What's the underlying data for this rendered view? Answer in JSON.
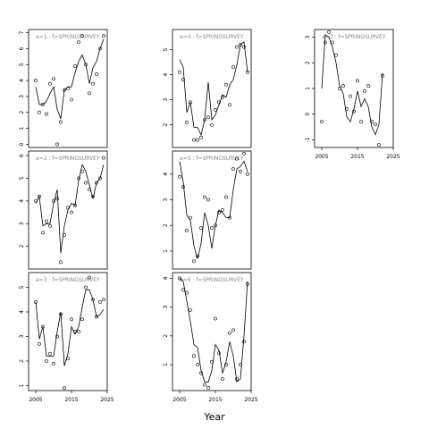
{
  "chart_data": {
    "type": "line",
    "xlabel": "Year",
    "x_ticks": [
      2005,
      2015,
      2025
    ],
    "x_tick_labels": [
      "2005",
      "2015",
      "2025"
    ],
    "xlim": [
      2003,
      2025
    ],
    "panels": [
      {
        "id": "a1",
        "strip_label": "a=1 : f=SPRINGSURVEY",
        "ylim": [
          -0.2,
          7.2
        ],
        "y_ticks": [
          0,
          1,
          2,
          3,
          4,
          5,
          6,
          7
        ],
        "y_tick_labels": [
          "0",
          "1",
          "2",
          "3",
          "4",
          "5",
          "6",
          "7"
        ],
        "show_x_axis": false,
        "points": [
          [
            2005,
            4.0
          ],
          [
            2006,
            2.0
          ],
          [
            2007,
            2.5
          ],
          [
            2008,
            1.9
          ],
          [
            2009,
            3.8
          ],
          [
            2010,
            4.1
          ],
          [
            2011,
            0.0
          ],
          [
            2012,
            1.4
          ],
          [
            2013,
            3.4
          ],
          [
            2014,
            3.5
          ],
          [
            2015,
            2.8
          ],
          [
            2016,
            4.9
          ],
          [
            2017,
            6.4
          ],
          [
            2018,
            6.8
          ],
          [
            2019,
            5.0
          ],
          [
            2020,
            3.2
          ],
          [
            2021,
            3.8
          ],
          [
            2022,
            4.4
          ],
          [
            2023,
            6.0
          ],
          [
            2024,
            6.8
          ]
        ],
        "fit": [
          [
            2005,
            3.6
          ],
          [
            2006,
            2.5
          ],
          [
            2007,
            2.5
          ],
          [
            2008,
            2.7
          ],
          [
            2009,
            3.2
          ],
          [
            2010,
            3.6
          ],
          [
            2011,
            2.2
          ],
          [
            2012,
            1.6
          ],
          [
            2013,
            3.4
          ],
          [
            2014,
            3.6
          ],
          [
            2015,
            3.6
          ],
          [
            2016,
            4.5
          ],
          [
            2017,
            5.2
          ],
          [
            2018,
            5.6
          ],
          [
            2019,
            5.0
          ],
          [
            2020,
            3.8
          ],
          [
            2021,
            4.8
          ],
          [
            2022,
            5.2
          ],
          [
            2023,
            6.0
          ],
          [
            2024,
            6.6
          ]
        ]
      },
      {
        "id": "a2",
        "strip_label": "a=2 : f=SPRINGSURVEY",
        "ylim": [
          1.0,
          6.2
        ],
        "y_ticks": [
          2,
          3,
          4,
          5,
          6
        ],
        "y_tick_labels": [
          "2",
          "3",
          "4",
          "5",
          "6"
        ],
        "show_x_axis": false,
        "points": [
          [
            2005,
            4.0
          ],
          [
            2006,
            4.2
          ],
          [
            2007,
            2.6
          ],
          [
            2008,
            3.1
          ],
          [
            2009,
            2.9
          ],
          [
            2010,
            4.0
          ],
          [
            2011,
            4.1
          ],
          [
            2012,
            1.3
          ],
          [
            2013,
            2.5
          ],
          [
            2014,
            3.7
          ],
          [
            2015,
            3.5
          ],
          [
            2016,
            3.8
          ],
          [
            2017,
            5.0
          ],
          [
            2018,
            5.3
          ],
          [
            2019,
            4.8
          ],
          [
            2020,
            4.5
          ],
          [
            2021,
            4.2
          ],
          [
            2022,
            4.8
          ],
          [
            2023,
            5.0
          ],
          [
            2024,
            5.9
          ]
        ],
        "fit": [
          [
            2005,
            3.9
          ],
          [
            2006,
            4.2
          ],
          [
            2007,
            2.9
          ],
          [
            2008,
            3.0
          ],
          [
            2009,
            3.0
          ],
          [
            2010,
            3.9
          ],
          [
            2011,
            4.5
          ],
          [
            2012,
            1.7
          ],
          [
            2013,
            2.9
          ],
          [
            2014,
            3.6
          ],
          [
            2015,
            3.9
          ],
          [
            2016,
            3.8
          ],
          [
            2017,
            4.9
          ],
          [
            2018,
            5.6
          ],
          [
            2019,
            5.3
          ],
          [
            2020,
            4.7
          ],
          [
            2021,
            4.1
          ],
          [
            2022,
            4.8
          ],
          [
            2023,
            5.0
          ],
          [
            2024,
            5.6
          ]
        ]
      },
      {
        "id": "a3",
        "strip_label": "a=3 : f=SPRINGSURVEY",
        "ylim": [
          0.8,
          5.6
        ],
        "y_ticks": [
          1,
          2,
          3,
          4,
          5
        ],
        "y_tick_labels": [
          "1",
          "2",
          "3",
          "4",
          "5"
        ],
        "show_x_axis": true,
        "points": [
          [
            2005,
            4.4
          ],
          [
            2006,
            2.7
          ],
          [
            2007,
            3.4
          ],
          [
            2008,
            2.0
          ],
          [
            2009,
            2.3
          ],
          [
            2010,
            1.9
          ],
          [
            2011,
            3.0
          ],
          [
            2012,
            3.9
          ],
          [
            2013,
            0.9
          ],
          [
            2014,
            2.1
          ],
          [
            2015,
            3.7
          ],
          [
            2016,
            3.2
          ],
          [
            2017,
            3.2
          ],
          [
            2018,
            3.7
          ],
          [
            2019,
            5.0
          ],
          [
            2020,
            5.4
          ],
          [
            2021,
            4.5
          ],
          [
            2022,
            3.8
          ],
          [
            2023,
            4.4
          ],
          [
            2024,
            4.5
          ]
        ],
        "fit": [
          [
            2005,
            4.4
          ],
          [
            2006,
            2.9
          ],
          [
            2007,
            3.4
          ],
          [
            2008,
            2.2
          ],
          [
            2009,
            2.2
          ],
          [
            2010,
            2.2
          ],
          [
            2011,
            3.2
          ],
          [
            2012,
            4.0
          ],
          [
            2013,
            1.8
          ],
          [
            2014,
            2.3
          ],
          [
            2015,
            3.4
          ],
          [
            2016,
            3.1
          ],
          [
            2017,
            3.4
          ],
          [
            2018,
            4.2
          ],
          [
            2019,
            4.9
          ],
          [
            2020,
            4.9
          ],
          [
            2021,
            4.5
          ],
          [
            2022,
            3.8
          ],
          [
            2023,
            3.9
          ],
          [
            2024,
            4.1
          ]
        ]
      },
      {
        "id": "a4",
        "strip_label": "a=4 : f=SPRINGSURVEY",
        "ylim": [
          1.1,
          5.8
        ],
        "y_ticks": [
          2,
          3,
          4,
          5
        ],
        "y_tick_labels": [
          "2",
          "3",
          "4",
          "5"
        ],
        "show_x_axis": false,
        "points": [
          [
            2005,
            4.1
          ],
          [
            2006,
            3.8
          ],
          [
            2007,
            2.1
          ],
          [
            2008,
            2.9
          ],
          [
            2009,
            1.4
          ],
          [
            2010,
            1.4
          ],
          [
            2011,
            1.5
          ],
          [
            2012,
            2.2
          ],
          [
            2013,
            2.3
          ],
          [
            2014,
            2.0
          ],
          [
            2015,
            2.6
          ],
          [
            2016,
            2.9
          ],
          [
            2017,
            3.1
          ],
          [
            2018,
            3.6
          ],
          [
            2019,
            2.8
          ],
          [
            2020,
            4.3
          ],
          [
            2021,
            5.1
          ],
          [
            2022,
            5.2
          ],
          [
            2023,
            5.1
          ],
          [
            2024,
            4.1
          ]
        ],
        "fit": [
          [
            2005,
            4.6
          ],
          [
            2006,
            4.3
          ],
          [
            2007,
            2.5
          ],
          [
            2008,
            2.9
          ],
          [
            2009,
            1.9
          ],
          [
            2010,
            1.9
          ],
          [
            2011,
            1.6
          ],
          [
            2012,
            2.2
          ],
          [
            2013,
            3.7
          ],
          [
            2014,
            2.2
          ],
          [
            2015,
            2.4
          ],
          [
            2016,
            2.8
          ],
          [
            2017,
            3.2
          ],
          [
            2018,
            3.1
          ],
          [
            2019,
            3.6
          ],
          [
            2020,
            3.8
          ],
          [
            2021,
            4.4
          ],
          [
            2022,
            5.2
          ],
          [
            2023,
            5.3
          ],
          [
            2024,
            4.1
          ]
        ]
      },
      {
        "id": "a5",
        "strip_label": "a=5 : f=SPRINGSURVEY",
        "ylim": [
          0.3,
          4.9
        ],
        "y_ticks": [
          1,
          2,
          3,
          4
        ],
        "y_tick_labels": [
          "1",
          "2",
          "3",
          "4"
        ],
        "show_x_axis": false,
        "points": [
          [
            2005,
            3.9
          ],
          [
            2006,
            3.5
          ],
          [
            2007,
            1.8
          ],
          [
            2008,
            2.3
          ],
          [
            2009,
            0.6
          ],
          [
            2010,
            0.8
          ],
          [
            2011,
            1.9
          ],
          [
            2012,
            3.1
          ],
          [
            2013,
            3.0
          ],
          [
            2014,
            1.9
          ],
          [
            2015,
            2.0
          ],
          [
            2016,
            2.5
          ],
          [
            2017,
            2.6
          ],
          [
            2018,
            3.1
          ],
          [
            2019,
            2.3
          ],
          [
            2020,
            4.2
          ],
          [
            2021,
            4.6
          ],
          [
            2022,
            4.1
          ],
          [
            2023,
            4.8
          ],
          [
            2024,
            4.0
          ]
        ],
        "fit": [
          [
            2005,
            4.5
          ],
          [
            2006,
            3.7
          ],
          [
            2007,
            2.4
          ],
          [
            2008,
            2.2
          ],
          [
            2009,
            1.2
          ],
          [
            2010,
            0.7
          ],
          [
            2011,
            1.3
          ],
          [
            2012,
            2.5
          ],
          [
            2013,
            2.0
          ],
          [
            2014,
            1.1
          ],
          [
            2015,
            2.0
          ],
          [
            2016,
            2.6
          ],
          [
            2017,
            2.5
          ],
          [
            2018,
            2.3
          ],
          [
            2019,
            2.3
          ],
          [
            2020,
            3.4
          ],
          [
            2021,
            4.2
          ],
          [
            2022,
            4.3
          ],
          [
            2023,
            4.5
          ],
          [
            2024,
            4.1
          ]
        ]
      },
      {
        "id": "a6",
        "strip_label": "a=6 : f=SPRINGSURVEY",
        "ylim": [
          0.1,
          4.2
        ],
        "y_ticks": [
          1,
          2,
          3,
          4
        ],
        "y_tick_labels": [
          "1",
          "2",
          "3",
          "4"
        ],
        "show_x_axis": true,
        "points": [
          [
            2005,
            4.0
          ],
          [
            2006,
            3.6
          ],
          [
            2007,
            3.5
          ],
          [
            2008,
            2.9
          ],
          [
            2009,
            1.3
          ],
          [
            2010,
            1.0
          ],
          [
            2011,
            0.7
          ],
          [
            2012,
            0.3
          ],
          [
            2013,
            0.2
          ],
          [
            2014,
            1.1
          ],
          [
            2015,
            2.6
          ],
          [
            2016,
            1.4
          ],
          [
            2017,
            0.5
          ],
          [
            2018,
            1.0
          ],
          [
            2019,
            2.1
          ],
          [
            2020,
            2.2
          ],
          [
            2021,
            0.5
          ],
          [
            2022,
            1.0
          ],
          [
            2023,
            1.8
          ],
          [
            2024,
            3.8
          ]
        ],
        "fit": [
          [
            2005,
            4.0
          ],
          [
            2006,
            3.9
          ],
          [
            2007,
            3.2
          ],
          [
            2008,
            2.5
          ],
          [
            2009,
            1.7
          ],
          [
            2010,
            1.6
          ],
          [
            2011,
            0.8
          ],
          [
            2012,
            0.4
          ],
          [
            2013,
            0.4
          ],
          [
            2014,
            0.8
          ],
          [
            2015,
            1.7
          ],
          [
            2016,
            1.5
          ],
          [
            2017,
            0.7
          ],
          [
            2018,
            1.1
          ],
          [
            2019,
            1.8
          ],
          [
            2020,
            1.3
          ],
          [
            2021,
            0.4
          ],
          [
            2022,
            0.5
          ],
          [
            2023,
            2.0
          ],
          [
            2024,
            3.9
          ]
        ]
      },
      {
        "id": "a7",
        "strip_label": "a=7 : f=SPRINGSURVEY",
        "ylim": [
          -1.3,
          3.3
        ],
        "y_ticks": [
          -1,
          0,
          1,
          2,
          3
        ],
        "y_tick_labels": [
          "-1",
          "0",
          "1",
          "2",
          "3"
        ],
        "show_x_axis": true,
        "points": [
          [
            2005,
            -0.3
          ],
          [
            2006,
            2.8
          ],
          [
            2007,
            3.2
          ],
          [
            2008,
            2.8
          ],
          [
            2009,
            2.3
          ],
          [
            2010,
            1.0
          ],
          [
            2011,
            1.1
          ],
          [
            2012,
            0.2
          ],
          [
            2013,
            0.7
          ],
          [
            2014,
            0.1
          ],
          [
            2015,
            1.3
          ],
          [
            2016,
            -0.3
          ],
          [
            2017,
            0.9
          ],
          [
            2018,
            1.1
          ],
          [
            2019,
            -0.3
          ],
          [
            2020,
            -0.4
          ],
          [
            2021,
            -1.2
          ],
          [
            2022,
            1.5
          ]
        ],
        "fit": [
          [
            2005,
            1.0
          ],
          [
            2006,
            3.1
          ],
          [
            2007,
            3.0
          ],
          [
            2008,
            2.6
          ],
          [
            2009,
            2.0
          ],
          [
            2010,
            1.1
          ],
          [
            2011,
            0.8
          ],
          [
            2012,
            -0.1
          ],
          [
            2013,
            -0.3
          ],
          [
            2014,
            0.2
          ],
          [
            2015,
            0.9
          ],
          [
            2016,
            0.3
          ],
          [
            2017,
            0.6
          ],
          [
            2018,
            0.3
          ],
          [
            2019,
            -0.5
          ],
          [
            2020,
            -0.8
          ],
          [
            2021,
            -0.4
          ],
          [
            2022,
            1.6
          ]
        ]
      }
    ]
  }
}
